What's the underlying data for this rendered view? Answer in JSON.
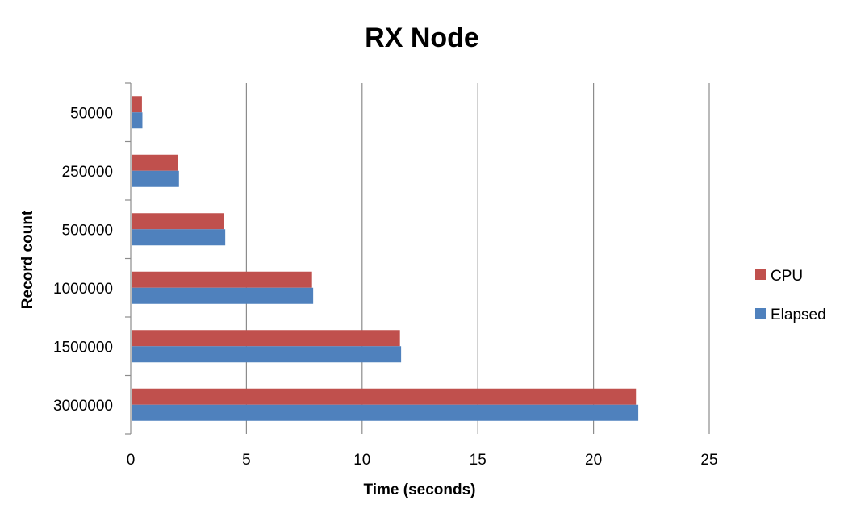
{
  "chart_data": {
    "type": "bar",
    "orientation": "horizontal",
    "title": "RX Node",
    "xlabel": "Time (seconds)",
    "ylabel": "Record count",
    "categories": [
      "50000",
      "250000",
      "500000",
      "1000000",
      "1500000",
      "3000000"
    ],
    "xlim": [
      0,
      25
    ],
    "x_ticks": [
      "0",
      "5",
      "10",
      "15",
      "20",
      "25"
    ],
    "grid": "vertical",
    "legend_position": "right",
    "series": [
      {
        "name": "CPU",
        "color": "#C0504D",
        "values": [
          0.45,
          2.0,
          4.0,
          7.8,
          11.6,
          21.8
        ]
      },
      {
        "name": "Elapsed",
        "color": "#4F81BD",
        "values": [
          0.47,
          2.05,
          4.05,
          7.85,
          11.65,
          21.9
        ]
      }
    ]
  }
}
